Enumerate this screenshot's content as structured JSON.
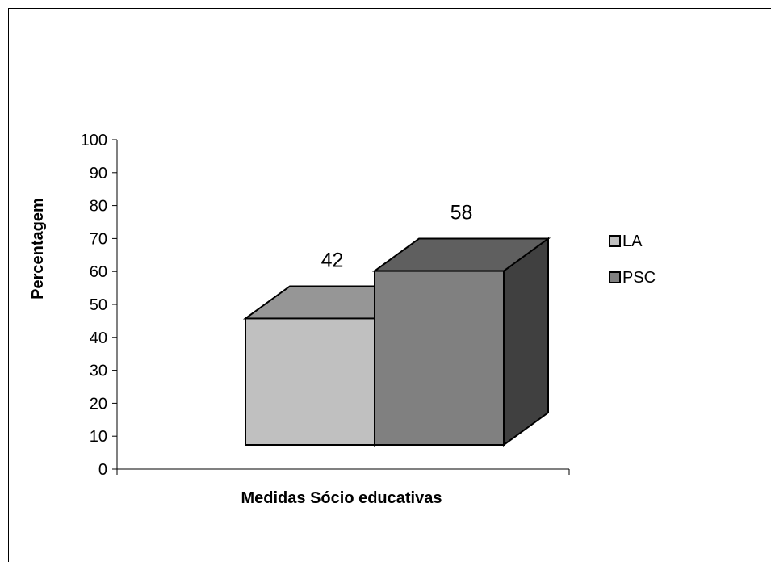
{
  "chart_data": {
    "type": "bar",
    "style": "3d",
    "categories": [
      "Medidas Sócio educativas"
    ],
    "series": [
      {
        "name": "LA",
        "values": [
          42
        ],
        "color": "#c0c0c0",
        "top_color": "#969696",
        "side_color": "#808080"
      },
      {
        "name": "PSC",
        "values": [
          58
        ],
        "color": "#808080",
        "top_color": "#5f5f5f",
        "side_color": "#404040"
      }
    ],
    "xlabel": "Medidas Sócio educativas",
    "ylabel": "Percentagem",
    "ylim": [
      0,
      100
    ],
    "yticks": [
      "0",
      "10",
      "20",
      "30",
      "40",
      "50",
      "60",
      "70",
      "80",
      "90",
      "100"
    ],
    "data_labels": [
      "42",
      "58"
    ],
    "legend_position": "right",
    "grid": false
  }
}
